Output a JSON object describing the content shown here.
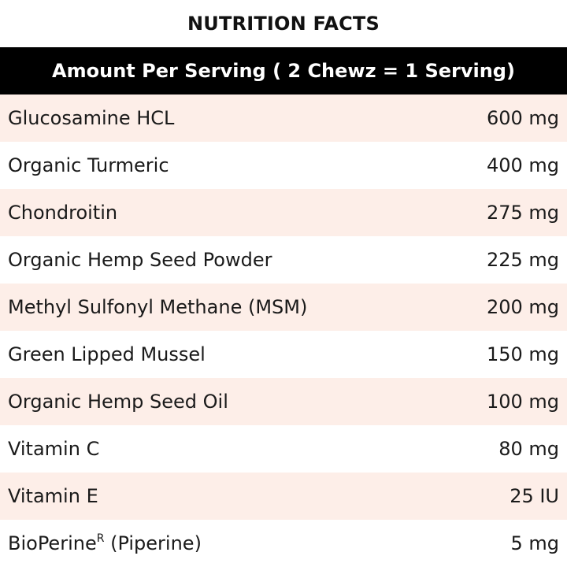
{
  "title": "NUTRITION FACTS",
  "header": "Amount Per Serving ( 2 Chewz = 1 Serving)",
  "colors": {
    "header_bg": "#000000",
    "header_text": "#ffffff",
    "shaded_row": "#fdeee8",
    "plain_row": "#ffffff"
  },
  "rows": [
    {
      "name": "Glucosamine HCL",
      "sup": "",
      "suffix": "",
      "amount": "600 mg",
      "shaded": true
    },
    {
      "name": "Organic Turmeric",
      "sup": "",
      "suffix": "",
      "amount": "400 mg",
      "shaded": false
    },
    {
      "name": "Chondroitin",
      "sup": "",
      "suffix": "",
      "amount": "275 mg",
      "shaded": true
    },
    {
      "name": "Organic Hemp Seed Powder",
      "sup": "",
      "suffix": "",
      "amount": "225 mg",
      "shaded": false
    },
    {
      "name": "Methyl Sulfonyl Methane (MSM)",
      "sup": "",
      "suffix": "",
      "amount": "200 mg",
      "shaded": true
    },
    {
      "name": "Green Lipped Mussel",
      "sup": "",
      "suffix": "",
      "amount": "150 mg",
      "shaded": false
    },
    {
      "name": "Organic Hemp Seed Oil",
      "sup": "",
      "suffix": "",
      "amount": "100 mg",
      "shaded": true
    },
    {
      "name": "Vitamin C",
      "sup": "",
      "suffix": "",
      "amount": "80 mg",
      "shaded": false
    },
    {
      "name": "Vitamin E",
      "sup": "",
      "suffix": "",
      "amount": "25 IU",
      "shaded": true
    },
    {
      "name": "BioPerine",
      "sup": "R",
      "suffix": " (Piperine)",
      "amount": "5 mg",
      "shaded": false
    }
  ]
}
